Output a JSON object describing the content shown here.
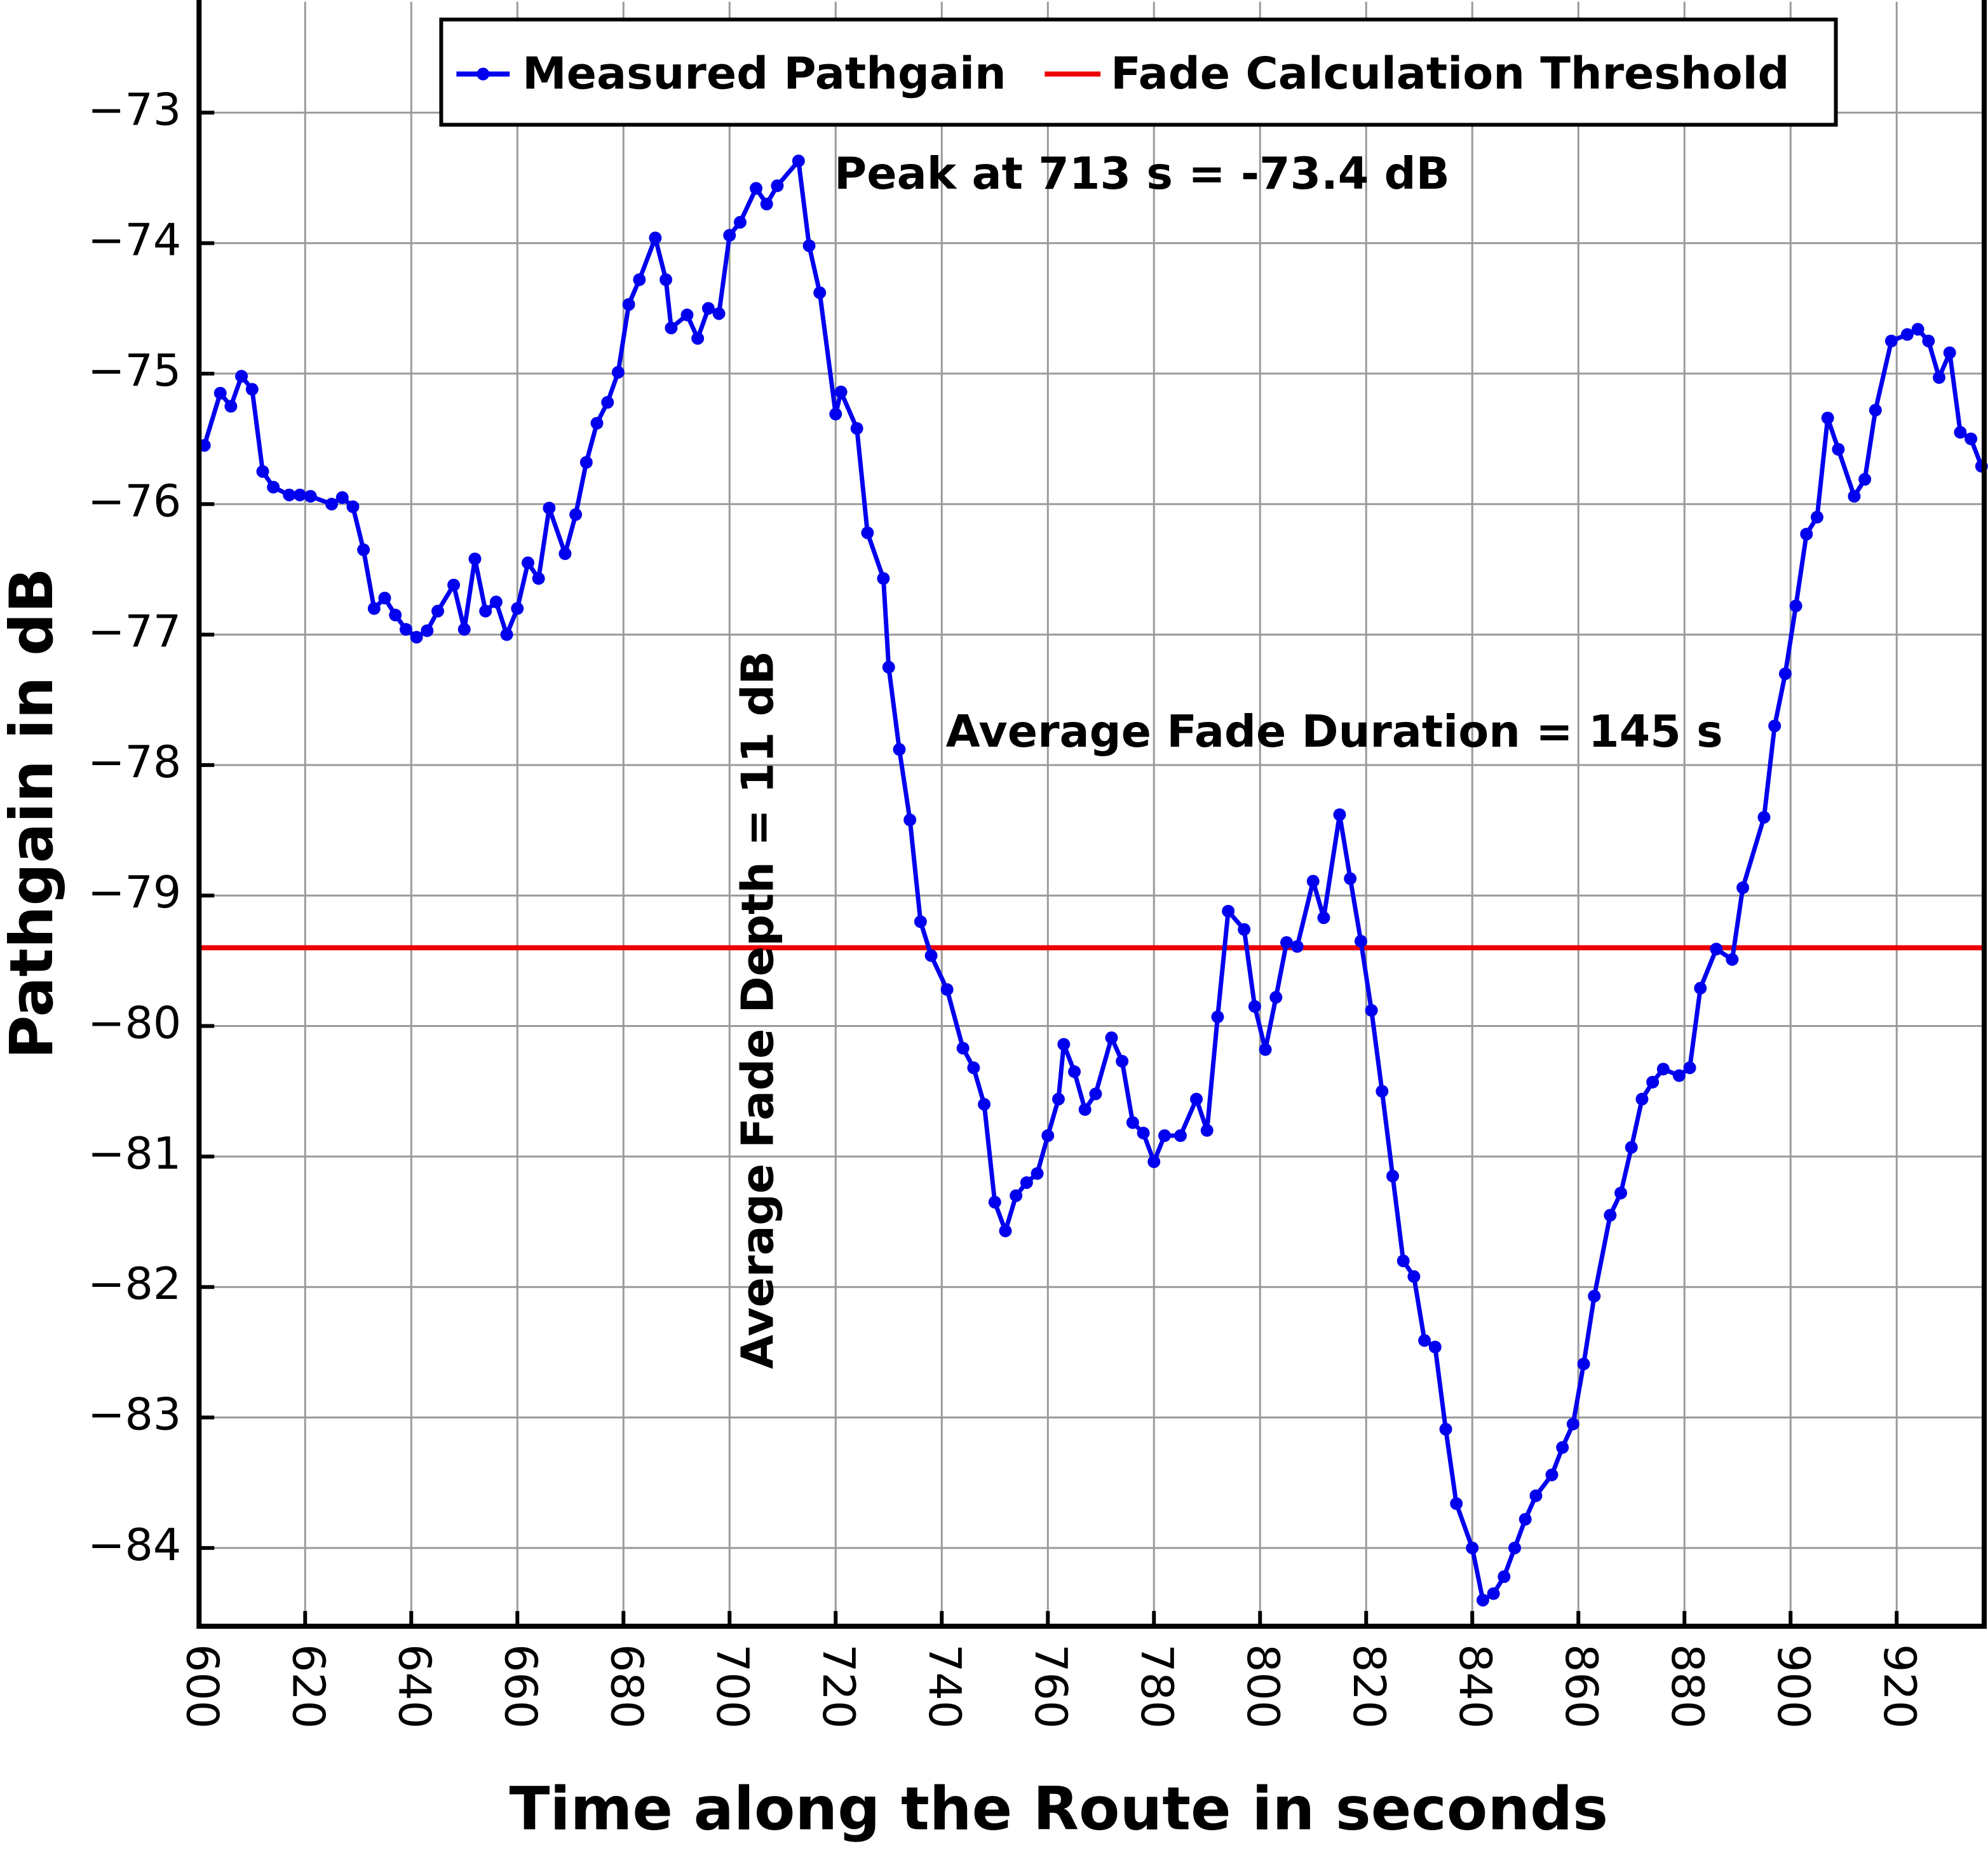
{
  "chart_data": {
    "type": "line",
    "xlabel": "Time along the Route in seconds",
    "ylabel": "Pathgain in dB",
    "x": [
      601,
      604,
      606,
      608,
      610,
      612,
      614,
      617,
      619,
      621,
      625,
      627,
      629,
      631,
      633,
      635,
      637,
      639,
      641,
      643,
      645,
      648,
      650,
      652,
      654,
      656,
      658,
      660,
      662,
      664,
      666,
      669,
      671,
      673,
      675,
      677,
      679,
      681,
      683,
      686,
      688,
      689,
      692,
      694,
      696,
      698,
      700,
      702,
      705,
      707,
      709,
      713,
      715,
      717,
      720,
      721,
      724,
      726,
      729,
      730,
      732,
      734,
      736,
      738,
      741,
      744,
      746,
      748,
      750,
      752,
      754,
      756,
      758,
      760,
      762,
      763,
      765,
      767,
      769,
      772,
      774,
      776,
      778,
      780,
      782,
      785,
      788,
      790,
      792,
      794,
      797,
      799,
      801,
      803,
      805,
      807,
      810,
      812,
      815,
      817,
      819,
      821,
      823,
      825,
      827,
      829,
      831,
      833,
      835,
      837,
      840,
      842,
      844,
      846,
      848,
      850,
      852,
      855,
      857,
      859,
      861,
      863,
      866,
      868,
      870,
      872,
      874,
      876,
      879,
      881,
      883,
      886,
      889,
      891,
      895,
      897,
      899,
      901,
      903,
      905,
      907,
      909,
      912,
      914,
      916,
      919,
      922,
      924,
      926,
      928,
      930,
      932,
      934,
      936
    ],
    "series": [
      {
        "name": "Measured Pathgain",
        "color": "#0000ee",
        "values": [
          -75.55,
          -75.15,
          -75.25,
          -75.02,
          -75.12,
          -75.75,
          -75.87,
          -75.93,
          -75.93,
          -75.94,
          -76.0,
          -75.95,
          -76.02,
          -76.35,
          -76.8,
          -76.72,
          -76.85,
          -76.96,
          -77.02,
          -76.97,
          -76.82,
          -76.62,
          -76.96,
          -76.42,
          -76.82,
          -76.75,
          -77.0,
          -76.8,
          -76.45,
          -76.57,
          -76.03,
          -76.38,
          -76.08,
          -75.68,
          -75.38,
          -75.22,
          -74.99,
          -74.47,
          -74.28,
          -73.96,
          -74.28,
          -74.65,
          -74.55,
          -74.73,
          -74.5,
          -74.54,
          -73.94,
          -73.84,
          -73.58,
          -73.7,
          -73.56,
          -73.37,
          -74.02,
          -74.38,
          -75.31,
          -75.14,
          -75.42,
          -76.22,
          -76.57,
          -77.25,
          -77.88,
          -78.42,
          -79.2,
          -79.46,
          -79.72,
          -80.17,
          -80.32,
          -80.6,
          -81.35,
          -81.57,
          -81.3,
          -81.2,
          -81.13,
          -80.84,
          -80.56,
          -80.14,
          -80.35,
          -80.64,
          -80.52,
          -80.09,
          -80.27,
          -80.74,
          -80.82,
          -81.04,
          -80.84,
          -80.84,
          -80.56,
          -80.8,
          -79.93,
          -79.12,
          -79.26,
          -79.85,
          -80.18,
          -79.78,
          -79.36,
          -79.39,
          -78.89,
          -79.17,
          -78.38,
          -78.87,
          -79.35,
          -79.88,
          -80.5,
          -81.15,
          -81.8,
          -81.92,
          -82.41,
          -82.46,
          -83.09,
          -83.66,
          -84.0,
          -84.4,
          -84.35,
          -84.22,
          -84.0,
          -83.78,
          -83.6,
          -83.44,
          -83.23,
          -83.05,
          -82.59,
          -82.07,
          -81.45,
          -81.28,
          -80.93,
          -80.56,
          -80.43,
          -80.33,
          -80.38,
          -80.32,
          -79.71,
          -79.41,
          -79.49,
          -78.94,
          -78.4,
          -77.7,
          -77.3,
          -76.78,
          -76.23,
          -76.1,
          -75.34,
          -75.58,
          -75.94,
          -75.81,
          -75.28,
          -74.75,
          -74.7,
          -74.66,
          -74.75,
          -75.03,
          -74.84,
          -75.45,
          -75.5,
          -75.71
        ]
      }
    ],
    "threshold": {
      "name": "Fade Calculation Threshold",
      "color": "#ee0000",
      "value": -79.4
    },
    "annotations": [
      "Peak at 713 s = -73.4 dB",
      "Average Fade Duration = 145 s",
      "Average Fade Depth = 11 dB"
    ],
    "xlim": [
      600,
      936.5
    ],
    "ylim": [
      -84.6,
      -72.15
    ],
    "xticks": [
      600,
      620,
      640,
      660,
      680,
      700,
      720,
      740,
      760,
      780,
      800,
      820,
      840,
      860,
      880,
      900,
      920
    ],
    "yticks": [
      {
        "value": -84,
        "label": "−84"
      },
      {
        "value": -83,
        "label": "−83"
      },
      {
        "value": -82,
        "label": "−82"
      },
      {
        "value": -81,
        "label": "−81"
      },
      {
        "value": -80,
        "label": "−80"
      },
      {
        "value": -79,
        "label": "−79"
      },
      {
        "value": -78,
        "label": "−78"
      },
      {
        "value": -77,
        "label": "−77"
      },
      {
        "value": -76,
        "label": "−76"
      },
      {
        "value": -75,
        "label": "−75"
      },
      {
        "value": -74,
        "label": "−74"
      },
      {
        "value": -73,
        "label": "−73"
      }
    ],
    "grid": true
  }
}
